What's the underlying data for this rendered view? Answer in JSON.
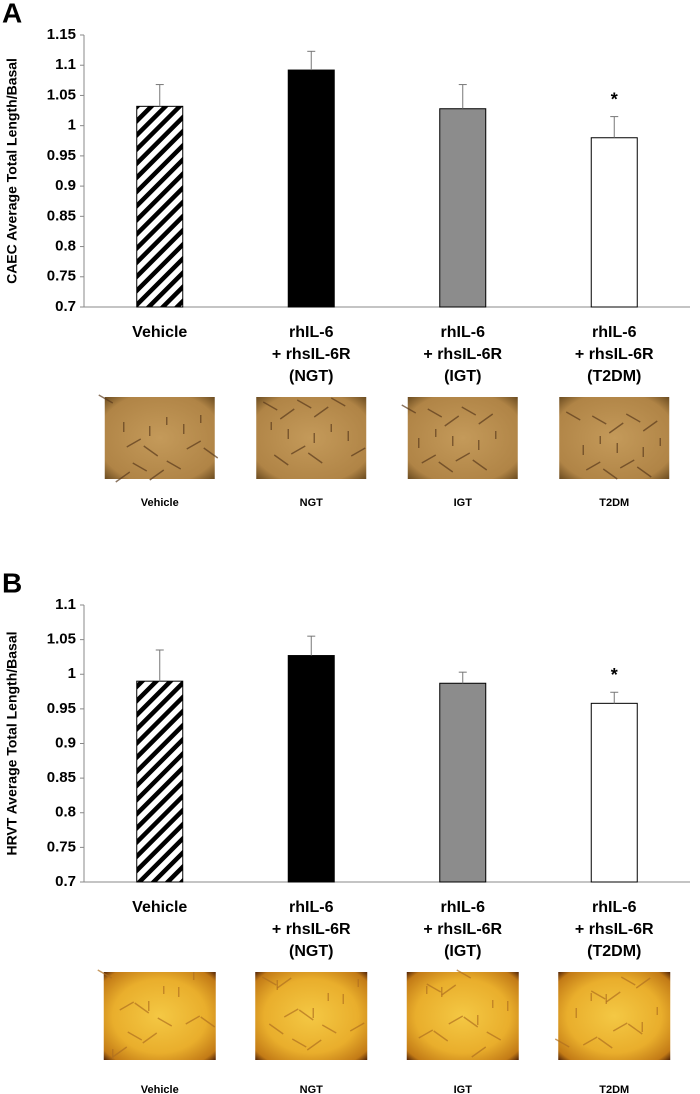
{
  "chart_data": [
    {
      "type": "bar",
      "panel": "A",
      "ylabel": "CAEC Average Total Length/Basal",
      "categories": [
        [
          "Vehicle"
        ],
        [
          "rhIL-6",
          "+ rhsIL-6R",
          "(NGT)"
        ],
        [
          "rhIL-6",
          "+ rhsIL-6R",
          "(IGT)"
        ],
        [
          "rhIL-6",
          "+ rhsIL-6R",
          "(T2DM)"
        ]
      ],
      "values": [
        1.032,
        1.092,
        1.028,
        0.98
      ],
      "errors": [
        0.036,
        0.031,
        0.04,
        0.035
      ],
      "fills": [
        "hatched",
        "#000000",
        "#8c8c8c",
        "#ffffff"
      ],
      "annotations": [
        null,
        null,
        null,
        "*"
      ],
      "ylim": [
        0.7,
        1.15
      ],
      "yticks": [
        0.7,
        0.75,
        0.8,
        0.85,
        0.9,
        0.95,
        1,
        1.05,
        1.1,
        1.15
      ],
      "image_captions": [
        "Vehicle",
        "NGT",
        "IGT",
        "T2DM"
      ]
    },
    {
      "type": "bar",
      "panel": "B",
      "ylabel": "HRVT Average Total Length/Basal",
      "categories": [
        [
          "Vehicle"
        ],
        [
          "rhIL-6",
          "+ rhsIL-6R",
          "(NGT)"
        ],
        [
          "rhIL-6",
          "+ rhsIL-6R",
          "(IGT)"
        ],
        [
          "rhIL-6",
          "+ rhsIL-6R",
          "(T2DM)"
        ]
      ],
      "values": [
        0.99,
        1.027,
        0.987,
        0.958
      ],
      "errors": [
        0.045,
        0.028,
        0.016,
        0.016
      ],
      "fills": [
        "hatched",
        "#000000",
        "#8c8c8c",
        "#ffffff"
      ],
      "annotations": [
        null,
        null,
        null,
        "*"
      ],
      "ylim": [
        0.7,
        1.1
      ],
      "yticks": [
        0.7,
        0.75,
        0.8,
        0.85,
        0.9,
        0.95,
        1,
        1.05,
        1.1
      ],
      "image_captions": [
        "Vehicle",
        "NGT",
        "IGT",
        "T2DM"
      ]
    }
  ]
}
